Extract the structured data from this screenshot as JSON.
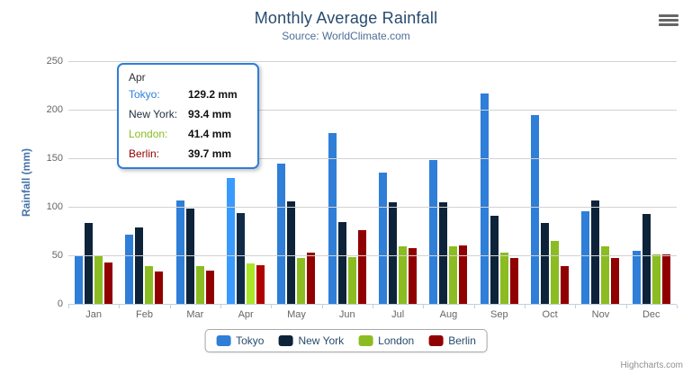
{
  "header": {
    "title": "Monthly Average Rainfall",
    "subtitle": "Source: WorldClimate.com"
  },
  "icons": {
    "export_menu": "hamburger-icon"
  },
  "chart_data": {
    "type": "bar",
    "title": "Monthly Average Rainfall",
    "subtitle": "Source: WorldClimate.com",
    "xlabel": "",
    "ylabel": "Rainfall (mm)",
    "ylim": [
      0,
      250
    ],
    "yticks": [
      0,
      50,
      100,
      150,
      200,
      250
    ],
    "grid": true,
    "legend_position": "bottom-center",
    "categories": [
      "Jan",
      "Feb",
      "Mar",
      "Apr",
      "May",
      "Jun",
      "Jul",
      "Aug",
      "Sep",
      "Oct",
      "Nov",
      "Dec"
    ],
    "series": [
      {
        "name": "Tokyo",
        "color": "#2f7ed8",
        "values": [
          49.9,
          71.5,
          106.4,
          129.2,
          144.0,
          176.0,
          135.6,
          148.5,
          216.4,
          194.1,
          95.6,
          54.4
        ]
      },
      {
        "name": "New York",
        "color": "#0d233a",
        "values": [
          83.6,
          78.8,
          98.5,
          93.4,
          106.0,
          84.5,
          105.0,
          104.3,
          91.2,
          83.5,
          106.6,
          92.3
        ]
      },
      {
        "name": "London",
        "color": "#8bbc21",
        "values": [
          48.9,
          38.8,
          39.3,
          41.4,
          47.0,
          48.3,
          59.0,
          59.6,
          52.4,
          65.2,
          59.3,
          51.2
        ]
      },
      {
        "name": "Berlin",
        "color": "#910000",
        "values": [
          42.4,
          33.2,
          34.5,
          39.7,
          52.6,
          75.5,
          57.4,
          60.4,
          47.6,
          39.1,
          46.8,
          51.1
        ]
      }
    ],
    "highlighted_category": "Apr"
  },
  "tooltip": {
    "header": "Apr",
    "border_color": "#2f7ed8",
    "rows": [
      {
        "label": "Tokyo:",
        "value": "129.2 mm",
        "color": "#2f7ed8"
      },
      {
        "label": "New York:",
        "value": "93.4 mm",
        "color": "#22313f"
      },
      {
        "label": "London:",
        "value": "41.4 mm",
        "color": "#8bbc21"
      },
      {
        "label": "Berlin:",
        "value": "39.7 mm",
        "color": "#910000"
      }
    ]
  },
  "credits": {
    "label": "Highcharts.com"
  }
}
